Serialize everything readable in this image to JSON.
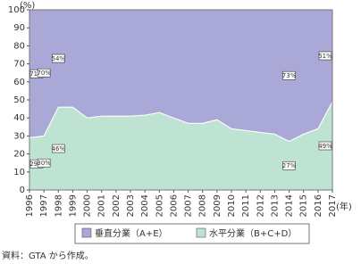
{
  "chart_data": {
    "type": "stacked-area",
    "y_label": "(%)",
    "x_label": "(年)",
    "source": "資料：GTA から作成。",
    "categories": [
      "1996",
      "1997",
      "1998",
      "1999",
      "2000",
      "2001",
      "2002",
      "2003",
      "2004",
      "2005",
      "2006",
      "2007",
      "2008",
      "2009",
      "2010",
      "2011",
      "2012",
      "2013",
      "2014",
      "2015",
      "2016",
      "2017"
    ],
    "series": [
      {
        "name": "水平分業（B+C+D）",
        "color": "#bfe3d3",
        "values": [
          29,
          30,
          46,
          46,
          40,
          41,
          41,
          41,
          41.5,
          43,
          40,
          37,
          37,
          39,
          34,
          33,
          32,
          31,
          27,
          31,
          34,
          49
        ],
        "value_labels": [
          "29%",
          "30%",
          "46%",
          null,
          null,
          null,
          null,
          null,
          null,
          null,
          null,
          null,
          null,
          null,
          null,
          null,
          null,
          null,
          "27%",
          null,
          null,
          "49%"
        ]
      },
      {
        "name": "垂直分業（A+E）",
        "color": "#aaa8d6",
        "values": [
          71,
          70,
          54,
          54,
          60,
          59,
          59,
          59,
          58.5,
          57,
          60,
          63,
          63,
          61,
          66,
          67,
          68,
          69,
          73,
          69,
          66,
          51
        ],
        "value_labels": [
          "71%",
          "70%",
          "54%",
          null,
          null,
          null,
          null,
          null,
          null,
          null,
          null,
          null,
          null,
          null,
          null,
          null,
          null,
          null,
          "73%",
          null,
          null,
          "51%"
        ]
      }
    ],
    "ylim": [
      0,
      100
    ],
    "yticks": [
      0,
      10,
      20,
      30,
      40,
      50,
      60,
      70,
      80,
      90,
      100
    ]
  }
}
